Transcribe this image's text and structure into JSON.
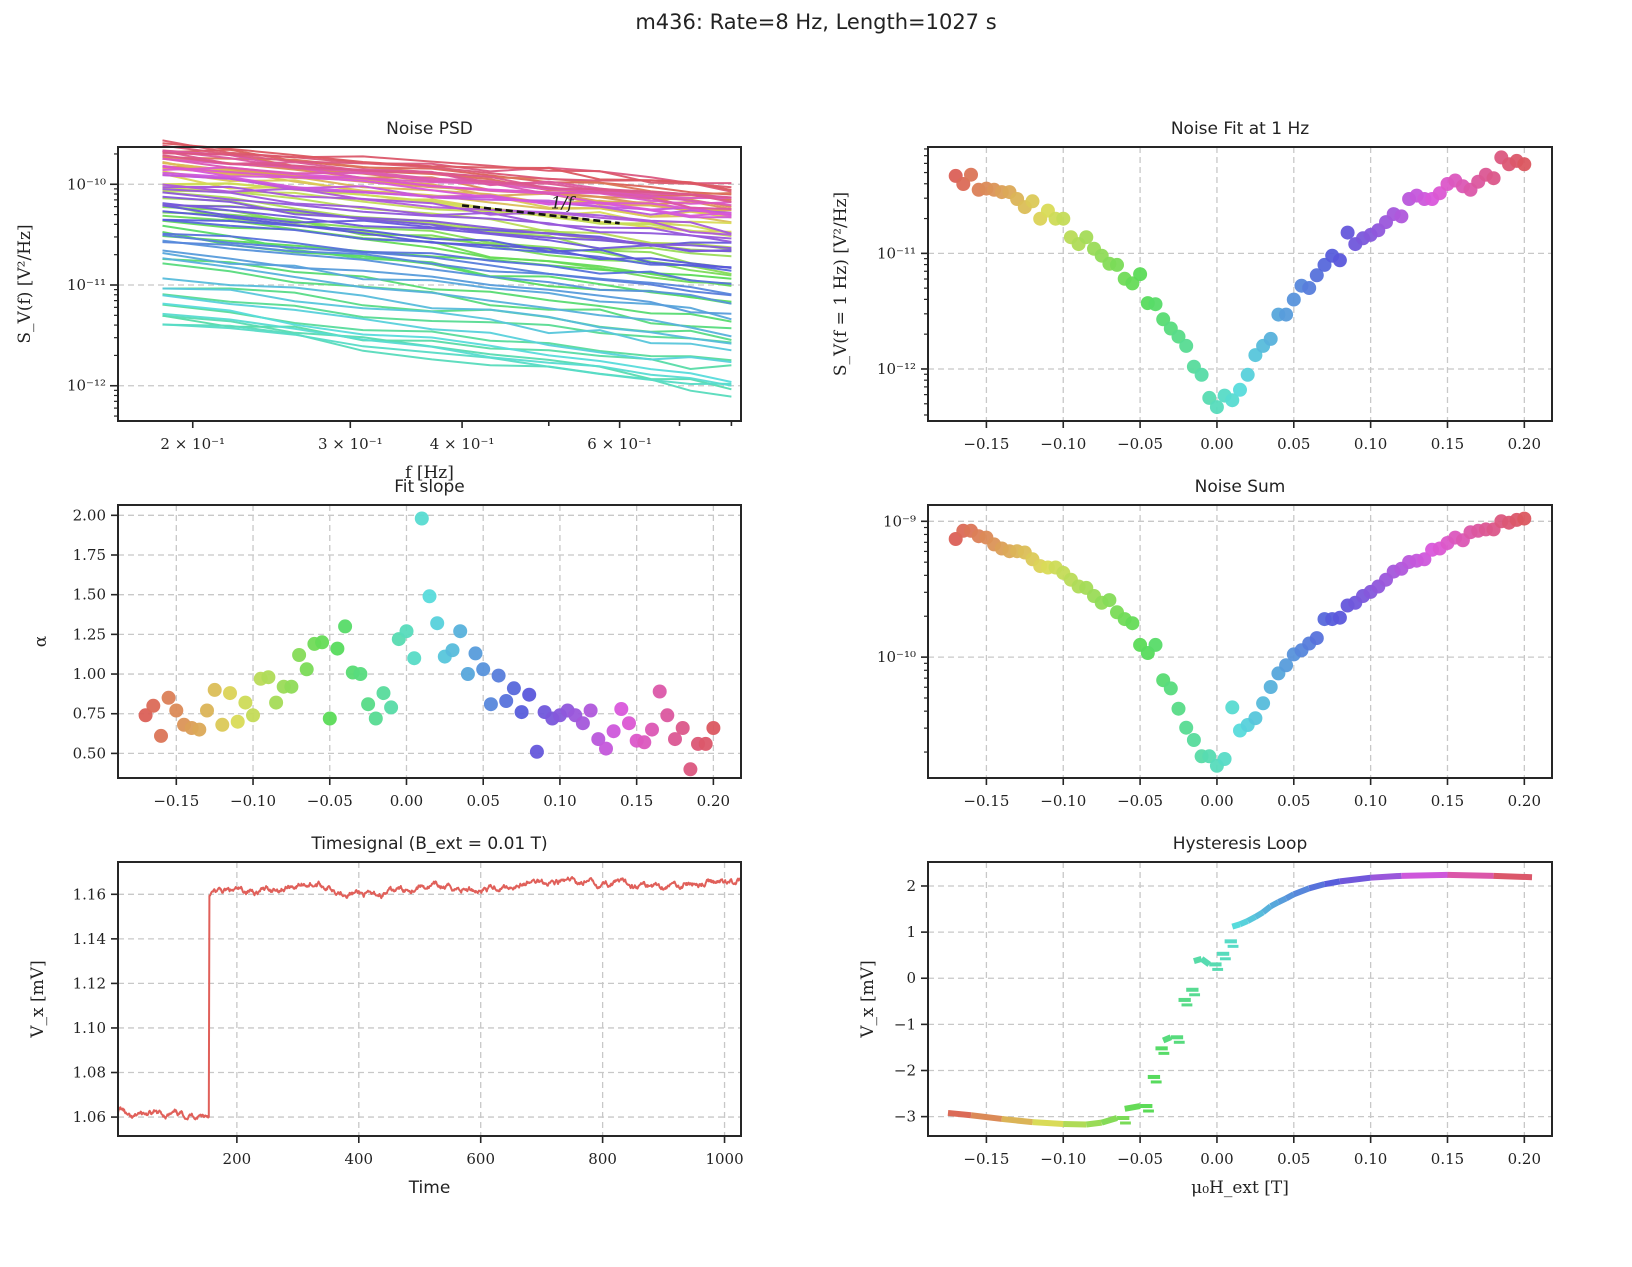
{
  "suptitle": "m436: Rate=8 Hz, Length=1027 s",
  "chart_data": [
    {
      "id": "noise_psd",
      "type": "line",
      "title": "Noise PSD",
      "xlabel": "f [Hz]",
      "ylabel": "S_V(f) [V²/Hz]",
      "xscale": "log",
      "yscale": "log",
      "xlim": [
        0.165,
        0.82
      ],
      "ylim_exp": [
        -12.35,
        -9.63
      ],
      "xticks": [
        {
          "value": 0.2,
          "label": "2 × 10⁻¹"
        },
        {
          "value": 0.3,
          "label": "3 × 10⁻¹"
        },
        {
          "value": 0.4,
          "label": "4 × 10⁻¹"
        },
        {
          "value": 0.6,
          "label": "6 × 10⁻¹"
        }
      ],
      "yticks": [
        {
          "exp": -10,
          "label": "10⁻¹⁰"
        },
        {
          "exp": -11,
          "label": "10⁻¹¹"
        },
        {
          "exp": -12,
          "label": "10⁻¹²"
        }
      ],
      "frequencies": [
        0.185,
        0.22,
        0.26,
        0.31,
        0.37,
        0.43,
        0.5,
        0.57,
        0.65,
        0.72,
        0.8
      ],
      "series_note": "one line per field value; S(f) = S(1Hz) * f^-alpha using noise_fit and fit_slope data",
      "annotation": {
        "text": "1/f",
        "f_start": 0.4,
        "f_end": 0.6,
        "y_exp_start": -10.21
      },
      "grid": "y"
    },
    {
      "id": "noise_fit",
      "type": "scatter",
      "title": "Noise Fit at 1 Hz",
      "xlabel": "",
      "ylabel": "S_V(f = 1 Hz) [V²/Hz]",
      "xlim": [
        -0.188,
        0.218
      ],
      "ylim_exp": [
        -12.45,
        -10.08
      ],
      "yscale": "log",
      "xticks": [
        -0.15,
        -0.1,
        -0.05,
        0.0,
        0.05,
        0.1,
        0.15,
        0.2
      ],
      "yticks": [
        {
          "exp": -11,
          "label": "10⁻¹¹"
        },
        {
          "exp": -12,
          "label": "10⁻¹²"
        }
      ],
      "y_exp": [
        -10.33,
        -10.4,
        -10.32,
        -10.45,
        -10.44,
        -10.45,
        -10.47,
        -10.47,
        -10.53,
        -10.6,
        -10.55,
        -10.7,
        -10.63,
        -10.7,
        -10.7,
        -10.86,
        -10.92,
        -10.86,
        -10.96,
        -11.02,
        -11.09,
        -11.1,
        -11.22,
        -11.26,
        -11.18,
        -11.43,
        -11.44,
        -11.57,
        -11.65,
        -11.72,
        -11.8,
        -11.98,
        -12.05,
        -12.25,
        -12.33,
        -12.23,
        -12.27,
        -12.18,
        -12.05,
        -11.88,
        -11.8,
        -11.74,
        -11.53,
        -11.53,
        -11.4,
        -11.28,
        -11.3,
        -11.19,
        -11.1,
        -11.02,
        -11.06,
        -10.82,
        -10.92,
        -10.87,
        -10.84,
        -10.8,
        -10.73,
        -10.66,
        -10.68,
        -10.53,
        -10.5,
        -10.53,
        -10.53,
        -10.48,
        -10.4,
        -10.37,
        -10.42,
        -10.45,
        -10.38,
        -10.32,
        -10.35,
        -10.17,
        -10.23,
        -10.2,
        -10.23
      ],
      "grid": "both"
    },
    {
      "id": "fit_slope",
      "type": "scatter",
      "title": "Fit slope",
      "xlabel": "",
      "ylabel": "α",
      "xlim": [
        -0.188,
        0.218
      ],
      "ylim": [
        0.345,
        2.065
      ],
      "xticks": [
        -0.15,
        -0.1,
        -0.05,
        0.0,
        0.05,
        0.1,
        0.15,
        0.2
      ],
      "yticks": [
        0.5,
        0.75,
        1.0,
        1.25,
        1.5,
        1.75,
        2.0
      ],
      "values": [
        0.74,
        0.8,
        0.61,
        0.85,
        0.77,
        0.68,
        0.66,
        0.65,
        0.77,
        0.9,
        0.68,
        0.88,
        0.7,
        0.82,
        0.74,
        0.97,
        0.98,
        0.82,
        0.92,
        0.92,
        1.12,
        1.03,
        1.19,
        1.2,
        0.72,
        1.16,
        1.3,
        1.01,
        1.0,
        0.81,
        0.72,
        0.88,
        0.79,
        1.22,
        1.27,
        1.1,
        1.98,
        1.49,
        1.32,
        1.11,
        1.15,
        1.27,
        1.0,
        1.13,
        1.03,
        0.81,
        0.99,
        0.83,
        0.91,
        0.76,
        0.87,
        0.51,
        0.76,
        0.72,
        0.74,
        0.77,
        0.74,
        0.69,
        0.77,
        0.59,
        0.53,
        0.64,
        0.78,
        0.69,
        0.58,
        0.57,
        0.65,
        0.89,
        0.74,
        0.59,
        0.66,
        0.4,
        0.56,
        0.56,
        0.66
      ],
      "grid": "both"
    },
    {
      "id": "noise_sum",
      "type": "scatter",
      "title": "Noise Sum",
      "xlabel": "",
      "ylabel": "",
      "xlim": [
        -0.188,
        0.218
      ],
      "ylim_exp": [
        -10.89,
        -8.88
      ],
      "yscale": "log",
      "xticks": [
        -0.15,
        -0.1,
        -0.05,
        0.0,
        0.05,
        0.1,
        0.15,
        0.2
      ],
      "yticks": [
        {
          "exp": -9,
          "label": "10⁻⁹"
        },
        {
          "exp": -10,
          "label": "10⁻¹⁰"
        }
      ],
      "y_exp": [
        -9.13,
        -9.07,
        -9.07,
        -9.11,
        -9.12,
        -9.17,
        -9.2,
        -9.22,
        -9.22,
        -9.23,
        -9.28,
        -9.33,
        -9.34,
        -9.34,
        -9.38,
        -9.43,
        -9.48,
        -9.49,
        -9.55,
        -9.6,
        -9.58,
        -9.67,
        -9.72,
        -9.75,
        -9.91,
        -9.97,
        -9.91,
        -10.17,
        -10.23,
        -10.38,
        -10.52,
        -10.61,
        -10.73,
        -10.73,
        -10.8,
        -10.75,
        -10.37,
        -10.54,
        -10.5,
        -10.45,
        -10.34,
        -10.22,
        -10.12,
        -10.06,
        -9.98,
        -9.95,
        -9.9,
        -9.86,
        -9.72,
        -9.72,
        -9.71,
        -9.62,
        -9.6,
        -9.55,
        -9.52,
        -9.48,
        -9.43,
        -9.37,
        -9.35,
        -9.3,
        -9.29,
        -9.28,
        -9.21,
        -9.2,
        -9.16,
        -9.12,
        -9.14,
        -9.08,
        -9.07,
        -9.06,
        -9.06,
        -9.0,
        -9.01,
        -8.99,
        -8.98
      ],
      "grid": "both"
    },
    {
      "id": "timesignal",
      "type": "line",
      "title": "Timesignal (B_ext = 0.01 T)",
      "xlabel": "Time",
      "ylabel": "V_x [mV]",
      "xlim": [
        5,
        1027
      ],
      "ylim": [
        1.0515,
        1.1745
      ],
      "xticks": [
        200,
        400,
        600,
        800,
        1000
      ],
      "yticks": [
        1.06,
        1.08,
        1.1,
        1.12,
        1.14,
        1.16
      ],
      "step_time": 155,
      "level_before": 1.061,
      "level_after": 1.163,
      "trend_points": [
        [
          160,
          1.161
        ],
        [
          250,
          1.162
        ],
        [
          320,
          1.165
        ],
        [
          420,
          1.159
        ],
        [
          500,
          1.164
        ],
        [
          600,
          1.162
        ],
        [
          700,
          1.166
        ],
        [
          800,
          1.165
        ],
        [
          900,
          1.164
        ],
        [
          1027,
          1.166
        ]
      ],
      "noise_amplitude": 0.0018,
      "color": "#e0605a",
      "grid": "both"
    },
    {
      "id": "hysteresis",
      "type": "line",
      "title": "Hysteresis Loop",
      "xlabel": "μ₀H_ext [T]",
      "ylabel": "V_x [mV]",
      "xlim": [
        -0.188,
        0.218
      ],
      "ylim": [
        -3.42,
        2.52
      ],
      "xticks": [
        -0.15,
        -0.1,
        -0.05,
        0.0,
        0.05,
        0.1,
        0.15,
        0.2
      ],
      "yticks": [
        -3,
        -2,
        -1,
        0,
        1,
        2
      ],
      "curve": [
        [
          -0.175,
          -2.92
        ],
        [
          -0.16,
          -2.97
        ],
        [
          -0.14,
          -3.05
        ],
        [
          -0.12,
          -3.12
        ],
        [
          -0.1,
          -3.16
        ],
        [
          -0.085,
          -3.17
        ],
        [
          -0.075,
          -3.13
        ],
        [
          -0.065,
          -3.03
        ],
        [
          -0.06,
          -2.83
        ],
        [
          -0.05,
          -2.77
        ],
        [
          -0.045,
          -2.14
        ],
        [
          -0.04,
          -1.52
        ],
        [
          -0.035,
          -1.35
        ],
        [
          -0.03,
          -1.28
        ],
        [
          -0.025,
          -0.47
        ],
        [
          -0.02,
          -0.25
        ],
        [
          -0.015,
          0.37
        ],
        [
          -0.01,
          0.42
        ],
        [
          -0.005,
          0.3
        ],
        [
          0.0,
          0.53
        ],
        [
          0.005,
          0.8
        ],
        [
          0.01,
          1.12
        ],
        [
          0.015,
          1.17
        ],
        [
          0.02,
          1.24
        ],
        [
          0.025,
          1.33
        ],
        [
          0.03,
          1.43
        ],
        [
          0.035,
          1.56
        ],
        [
          0.04,
          1.65
        ],
        [
          0.045,
          1.73
        ],
        [
          0.05,
          1.82
        ],
        [
          0.06,
          1.95
        ],
        [
          0.07,
          2.04
        ],
        [
          0.08,
          2.1
        ],
        [
          0.1,
          2.18
        ],
        [
          0.12,
          2.22
        ],
        [
          0.15,
          2.24
        ],
        [
          0.18,
          2.22
        ],
        [
          0.205,
          2.19
        ]
      ],
      "grid": "both"
    }
  ],
  "field_values": {
    "start": -0.17,
    "step": 0.005,
    "count": 75
  },
  "colormap": {
    "name": "hls",
    "saturation": 0.65,
    "lightness": 0.6
  }
}
